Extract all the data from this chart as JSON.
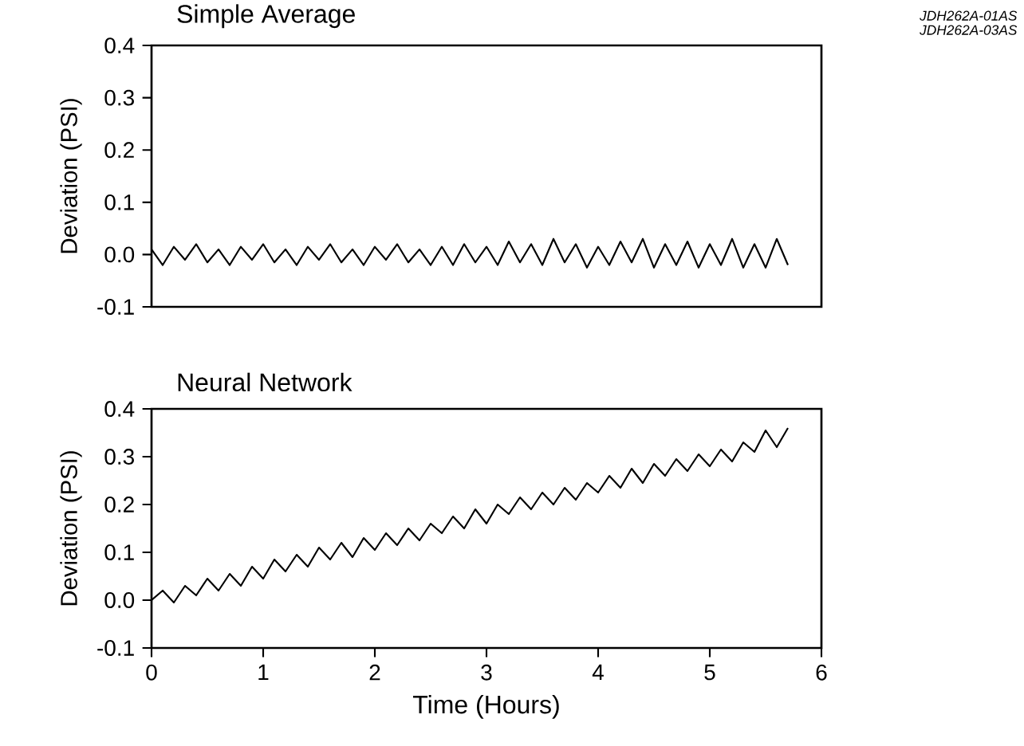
{
  "chart_data": [
    {
      "type": "line",
      "title": "Simple Average",
      "ylabel": "Deviation (PSI)",
      "annotations": [
        "JDH262A-01AS",
        "JDH262A-03AS"
      ],
      "xlim": [
        0,
        6
      ],
      "ylim": [
        -0.1,
        0.4
      ],
      "yticks": [
        {
          "value": -0.1,
          "label": "-0.1"
        },
        {
          "value": 0,
          "label": "0.0"
        },
        {
          "value": 0.1,
          "label": "0.1"
        },
        {
          "value": 0.2,
          "label": "0.2"
        },
        {
          "value": 0.3,
          "label": "0.3"
        },
        {
          "value": 0.4,
          "label": "0.4"
        }
      ],
      "tick_labels": "y",
      "x": [
        0,
        0.1,
        0.2,
        0.3,
        0.4,
        0.5,
        0.6,
        0.7,
        0.8,
        0.9,
        1.0,
        1.1,
        1.2,
        1.3,
        1.4,
        1.5,
        1.6,
        1.7,
        1.8,
        1.9,
        2.0,
        2.1,
        2.2,
        2.3,
        2.4,
        2.5,
        2.6,
        2.7,
        2.8,
        2.9,
        3.0,
        3.1,
        3.2,
        3.3,
        3.4,
        3.5,
        3.6,
        3.7,
        3.8,
        3.9,
        4.0,
        4.1,
        4.2,
        4.3,
        4.4,
        4.5,
        4.6,
        4.7,
        4.8,
        4.9,
        5.0,
        5.1,
        5.2,
        5.3,
        5.4,
        5.5,
        5.6,
        5.7
      ],
      "series": [
        {
          "color": "#000000",
          "values": [
            0.01,
            -0.02,
            0.015,
            -0.01,
            0.02,
            -0.015,
            0.01,
            -0.02,
            0.015,
            -0.01,
            0.02,
            -0.015,
            0.01,
            -0.02,
            0.015,
            -0.01,
            0.02,
            -0.015,
            0.01,
            -0.02,
            0.015,
            -0.01,
            0.02,
            -0.015,
            0.01,
            -0.02,
            0.015,
            -0.02,
            0.02,
            -0.015,
            0.015,
            -0.02,
            0.025,
            -0.015,
            0.02,
            -0.02,
            0.03,
            -0.015,
            0.02,
            -0.025,
            0.015,
            -0.02,
            0.025,
            -0.015,
            0.03,
            -0.025,
            0.02,
            -0.02,
            0.025,
            -0.025,
            0.02,
            -0.02,
            0.03,
            -0.025,
            0.02,
            -0.025,
            0.03,
            -0.02
          ]
        }
      ]
    },
    {
      "type": "line",
      "title": "Neural Network",
      "xlabel": "Time (Hours)",
      "ylabel": "Deviation (PSI)",
      "xlim": [
        0,
        6
      ],
      "xticks": [
        0,
        1,
        2,
        3,
        4,
        5,
        6
      ],
      "ylim": [
        -0.1,
        0.4
      ],
      "yticks": [
        {
          "value": -0.1,
          "label": "-0.1"
        },
        {
          "value": 0,
          "label": "0.0"
        },
        {
          "value": 0.1,
          "label": "0.1"
        },
        {
          "value": 0.2,
          "label": "0.2"
        },
        {
          "value": 0.3,
          "label": "0.3"
        },
        {
          "value": 0.4,
          "label": "0.4"
        }
      ],
      "x": [
        0,
        0.1,
        0.2,
        0.3,
        0.4,
        0.5,
        0.6,
        0.7,
        0.8,
        0.9,
        1.0,
        1.1,
        1.2,
        1.3,
        1.4,
        1.5,
        1.6,
        1.7,
        1.8,
        1.9,
        2.0,
        2.1,
        2.2,
        2.3,
        2.4,
        2.5,
        2.6,
        2.7,
        2.8,
        2.9,
        3.0,
        3.1,
        3.2,
        3.3,
        3.4,
        3.5,
        3.6,
        3.7,
        3.8,
        3.9,
        4.0,
        4.1,
        4.2,
        4.3,
        4.4,
        4.5,
        4.6,
        4.7,
        4.8,
        4.9,
        5.0,
        5.1,
        5.2,
        5.3,
        5.4,
        5.5,
        5.6,
        5.7
      ],
      "series": [
        {
          "color": "#000000",
          "values": [
            0.0,
            0.02,
            -0.005,
            0.03,
            0.01,
            0.045,
            0.02,
            0.055,
            0.03,
            0.07,
            0.045,
            0.085,
            0.06,
            0.095,
            0.07,
            0.11,
            0.085,
            0.12,
            0.09,
            0.13,
            0.105,
            0.14,
            0.115,
            0.15,
            0.125,
            0.16,
            0.14,
            0.175,
            0.15,
            0.19,
            0.16,
            0.2,
            0.18,
            0.215,
            0.19,
            0.225,
            0.2,
            0.235,
            0.21,
            0.245,
            0.225,
            0.26,
            0.235,
            0.275,
            0.245,
            0.285,
            0.26,
            0.295,
            0.27,
            0.305,
            0.28,
            0.315,
            0.29,
            0.33,
            0.31,
            0.355,
            0.32,
            0.36
          ]
        }
      ]
    }
  ]
}
